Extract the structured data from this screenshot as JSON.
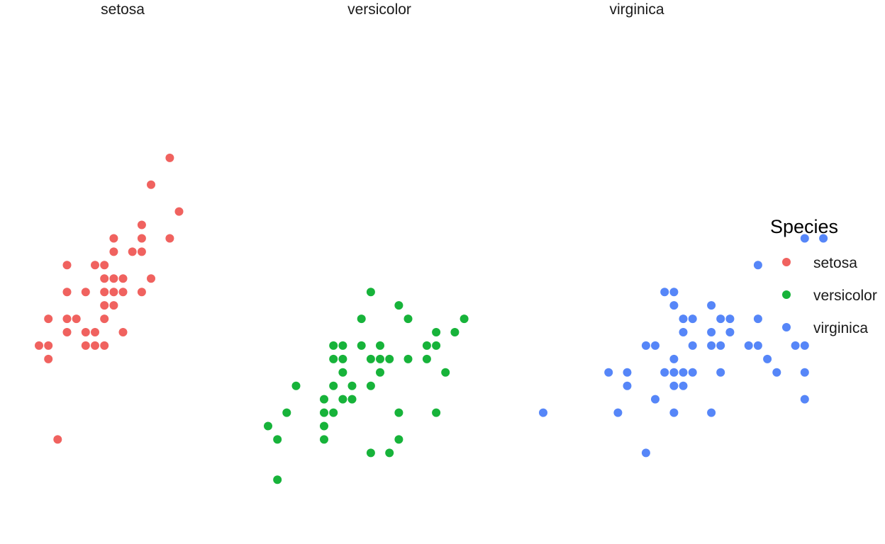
{
  "chart_data": {
    "type": "scatter",
    "layout": "faceted by species (3 panels), shared y axis, axes hidden, no grid",
    "facets": [
      "setosa",
      "versicolor",
      "virginica"
    ],
    "legend": {
      "title": "Species",
      "placement": "right",
      "entries": [
        "setosa",
        "versicolor",
        "virginica"
      ]
    },
    "colors": {
      "setosa": "#F0625F",
      "versicolor": "#17B33A",
      "virginica": "#5686F8"
    },
    "grid": false,
    "axes_visible": false,
    "xlim": [
      4.2,
      8.0
    ],
    "ylim": [
      1.95,
      4.45
    ],
    "series": [
      {
        "name": "setosa",
        "points": [
          [
            4.3,
            3.0
          ],
          [
            4.4,
            2.9
          ],
          [
            4.4,
            3.0
          ],
          [
            4.4,
            3.2
          ],
          [
            4.5,
            2.3
          ],
          [
            4.6,
            3.1
          ],
          [
            4.6,
            3.2
          ],
          [
            4.6,
            3.4
          ],
          [
            4.6,
            3.6
          ],
          [
            4.7,
            3.2
          ],
          [
            4.8,
            3.0
          ],
          [
            4.8,
            3.1
          ],
          [
            4.8,
            3.4
          ],
          [
            4.9,
            3.0
          ],
          [
            4.9,
            3.1
          ],
          [
            4.9,
            3.6
          ],
          [
            5.0,
            3.0
          ],
          [
            5.0,
            3.2
          ],
          [
            5.0,
            3.3
          ],
          [
            5.0,
            3.4
          ],
          [
            5.0,
            3.5
          ],
          [
            5.0,
            3.6
          ],
          [
            5.1,
            3.3
          ],
          [
            5.1,
            3.4
          ],
          [
            5.1,
            3.5
          ],
          [
            5.1,
            3.7
          ],
          [
            5.1,
            3.8
          ],
          [
            5.2,
            3.1
          ],
          [
            5.2,
            3.4
          ],
          [
            5.2,
            3.5
          ],
          [
            5.3,
            3.7
          ],
          [
            5.4,
            3.4
          ],
          [
            5.4,
            3.7
          ],
          [
            5.4,
            3.8
          ],
          [
            5.4,
            3.9
          ],
          [
            5.5,
            3.5
          ],
          [
            5.5,
            4.2
          ],
          [
            5.7,
            3.8
          ],
          [
            5.7,
            4.4
          ],
          [
            5.8,
            4.0
          ]
        ]
      },
      {
        "name": "versicolor",
        "points": [
          [
            4.9,
            2.4
          ],
          [
            5.0,
            2.0
          ],
          [
            5.0,
            2.3
          ],
          [
            5.1,
            2.5
          ],
          [
            5.2,
            2.7
          ],
          [
            5.5,
            2.3
          ],
          [
            5.5,
            2.4
          ],
          [
            5.5,
            2.5
          ],
          [
            5.5,
            2.6
          ],
          [
            5.6,
            2.5
          ],
          [
            5.6,
            2.7
          ],
          [
            5.6,
            2.9
          ],
          [
            5.6,
            3.0
          ],
          [
            5.7,
            2.6
          ],
          [
            5.7,
            2.8
          ],
          [
            5.7,
            2.9
          ],
          [
            5.7,
            3.0
          ],
          [
            5.8,
            2.6
          ],
          [
            5.8,
            2.7
          ],
          [
            5.9,
            3.0
          ],
          [
            5.9,
            3.2
          ],
          [
            6.0,
            2.2
          ],
          [
            6.0,
            2.7
          ],
          [
            6.0,
            2.9
          ],
          [
            6.0,
            3.4
          ],
          [
            6.1,
            2.8
          ],
          [
            6.1,
            2.9
          ],
          [
            6.1,
            3.0
          ],
          [
            6.2,
            2.2
          ],
          [
            6.2,
            2.9
          ],
          [
            6.3,
            2.3
          ],
          [
            6.3,
            2.5
          ],
          [
            6.3,
            3.3
          ],
          [
            6.4,
            2.9
          ],
          [
            6.4,
            3.2
          ],
          [
            6.6,
            2.9
          ],
          [
            6.6,
            3.0
          ],
          [
            6.7,
            2.5
          ],
          [
            6.7,
            3.0
          ],
          [
            6.7,
            3.1
          ],
          [
            6.8,
            2.8
          ],
          [
            6.9,
            3.1
          ],
          [
            7.0,
            3.2
          ]
        ]
      },
      {
        "name": "virginica",
        "points": [
          [
            4.9,
            2.5
          ],
          [
            5.6,
            2.8
          ],
          [
            5.7,
            2.5
          ],
          [
            5.8,
            2.7
          ],
          [
            5.8,
            2.8
          ],
          [
            6.0,
            2.2
          ],
          [
            6.0,
            3.0
          ],
          [
            6.1,
            2.6
          ],
          [
            6.1,
            3.0
          ],
          [
            6.2,
            2.8
          ],
          [
            6.2,
            3.4
          ],
          [
            6.3,
            2.5
          ],
          [
            6.3,
            2.7
          ],
          [
            6.3,
            2.8
          ],
          [
            6.3,
            2.9
          ],
          [
            6.3,
            3.3
          ],
          [
            6.3,
            3.4
          ],
          [
            6.4,
            2.7
          ],
          [
            6.4,
            2.8
          ],
          [
            6.4,
            3.1
          ],
          [
            6.4,
            3.2
          ],
          [
            6.5,
            2.8
          ],
          [
            6.5,
            3.0
          ],
          [
            6.5,
            3.2
          ],
          [
            6.7,
            2.5
          ],
          [
            6.7,
            3.0
          ],
          [
            6.7,
            3.1
          ],
          [
            6.7,
            3.3
          ],
          [
            6.8,
            2.8
          ],
          [
            6.8,
            3.0
          ],
          [
            6.8,
            3.2
          ],
          [
            6.9,
            3.1
          ],
          [
            6.9,
            3.2
          ],
          [
            7.1,
            3.0
          ],
          [
            7.2,
            3.0
          ],
          [
            7.2,
            3.2
          ],
          [
            7.2,
            3.6
          ],
          [
            7.3,
            2.9
          ],
          [
            7.4,
            2.8
          ],
          [
            7.6,
            3.0
          ],
          [
            7.7,
            2.6
          ],
          [
            7.7,
            2.8
          ],
          [
            7.7,
            3.0
          ],
          [
            7.7,
            3.8
          ],
          [
            7.9,
            3.8
          ]
        ]
      }
    ]
  }
}
